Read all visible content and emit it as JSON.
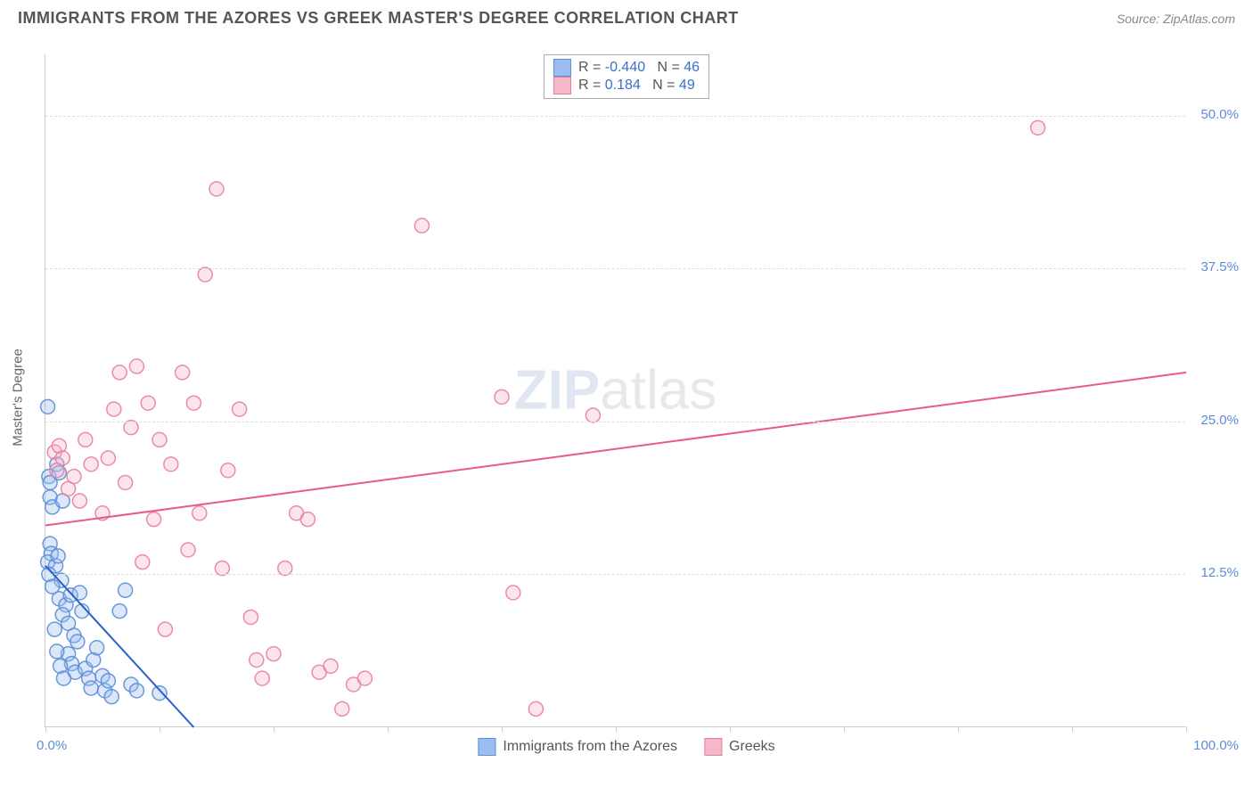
{
  "title": "IMMIGRANTS FROM THE AZORES VS GREEK MASTER'S DEGREE CORRELATION CHART",
  "source": "Source: ZipAtlas.com",
  "ylabel": "Master's Degree",
  "watermark": {
    "zip": "ZIP",
    "atlas": "atlas"
  },
  "chart": {
    "type": "scatter",
    "xlim": [
      0,
      100
    ],
    "ylim": [
      0,
      55
    ],
    "x_ticks": [
      0,
      10,
      20,
      30,
      40,
      50,
      60,
      70,
      80,
      90,
      100
    ],
    "x_tick_labels": {
      "0": "0.0%",
      "100": "100.0%"
    },
    "y_gridlines": [
      12.5,
      25.0,
      37.5,
      50.0
    ],
    "y_tick_labels": [
      "12.5%",
      "25.0%",
      "37.5%",
      "50.0%"
    ],
    "grid_color": "#dddddd",
    "axis_color": "#cccccc",
    "tick_label_color": "#5b8dd6",
    "marker_radius": 8,
    "marker_fill_opacity": 0.35,
    "marker_stroke_opacity": 0.9,
    "line_width": 2,
    "series": [
      {
        "name": "Immigrants from the Azores",
        "color_fill": "#9cbdf0",
        "color_stroke": "#5b8dd6",
        "R": "-0.440",
        "N": "46",
        "trend": {
          "x1": 0,
          "y1": 13.2,
          "x2": 13,
          "y2": 0
        },
        "trend_color": "#2a5fc9",
        "points": [
          [
            0.2,
            26.2
          ],
          [
            0.3,
            20.5
          ],
          [
            0.4,
            20.0
          ],
          [
            0.4,
            18.8
          ],
          [
            0.6,
            18.0
          ],
          [
            0.4,
            15.0
          ],
          [
            0.5,
            14.2
          ],
          [
            0.2,
            13.5
          ],
          [
            0.9,
            13.2
          ],
          [
            0.3,
            12.5
          ],
          [
            1.0,
            21.5
          ],
          [
            1.2,
            20.8
          ],
          [
            1.5,
            18.5
          ],
          [
            1.1,
            14.0
          ],
          [
            1.4,
            12.0
          ],
          [
            1.2,
            10.5
          ],
          [
            1.8,
            10.0
          ],
          [
            1.5,
            9.2
          ],
          [
            2.0,
            8.5
          ],
          [
            2.2,
            10.8
          ],
          [
            2.5,
            7.5
          ],
          [
            2.8,
            7.0
          ],
          [
            2.0,
            6.0
          ],
          [
            2.3,
            5.2
          ],
          [
            2.6,
            4.5
          ],
          [
            3.0,
            11.0
          ],
          [
            3.2,
            9.5
          ],
          [
            3.5,
            4.8
          ],
          [
            3.8,
            4.0
          ],
          [
            4.0,
            3.2
          ],
          [
            4.2,
            5.5
          ],
          [
            4.5,
            6.5
          ],
          [
            5.0,
            4.2
          ],
          [
            5.2,
            3.0
          ],
          [
            5.5,
            3.8
          ],
          [
            5.8,
            2.5
          ],
          [
            6.5,
            9.5
          ],
          [
            7.0,
            11.2
          ],
          [
            7.5,
            3.5
          ],
          [
            8.0,
            3.0
          ],
          [
            10.0,
            2.8
          ],
          [
            0.8,
            8.0
          ],
          [
            1.0,
            6.2
          ],
          [
            1.3,
            5.0
          ],
          [
            1.6,
            4.0
          ],
          [
            0.6,
            11.5
          ]
        ]
      },
      {
        "name": "Greeks",
        "color_fill": "#f5b8c8",
        "color_stroke": "#e87fa0",
        "R": "0.184",
        "N": "49",
        "trend": {
          "x1": 0,
          "y1": 16.5,
          "x2": 100,
          "y2": 29.0
        },
        "trend_color": "#e85a8a",
        "points": [
          [
            0.8,
            22.5
          ],
          [
            1.0,
            21.0
          ],
          [
            1.2,
            23.0
          ],
          [
            1.5,
            22.0
          ],
          [
            2.0,
            19.5
          ],
          [
            2.5,
            20.5
          ],
          [
            3.0,
            18.5
          ],
          [
            3.5,
            23.5
          ],
          [
            4.0,
            21.5
          ],
          [
            5.0,
            17.5
          ],
          [
            5.5,
            22.0
          ],
          [
            6.0,
            26.0
          ],
          [
            6.5,
            29.0
          ],
          [
            7.0,
            20.0
          ],
          [
            7.5,
            24.5
          ],
          [
            8.0,
            29.5
          ],
          [
            8.5,
            13.5
          ],
          [
            9.0,
            26.5
          ],
          [
            9.5,
            17.0
          ],
          [
            10.0,
            23.5
          ],
          [
            10.5,
            8.0
          ],
          [
            11.0,
            21.5
          ],
          [
            12.0,
            29.0
          ],
          [
            12.5,
            14.5
          ],
          [
            13.0,
            26.5
          ],
          [
            13.5,
            17.5
          ],
          [
            14.0,
            37.0
          ],
          [
            15.0,
            44.0
          ],
          [
            15.5,
            13.0
          ],
          [
            16.0,
            21.0
          ],
          [
            17.0,
            26.0
          ],
          [
            18.0,
            9.0
          ],
          [
            18.5,
            5.5
          ],
          [
            19.0,
            4.0
          ],
          [
            20.0,
            6.0
          ],
          [
            21.0,
            13.0
          ],
          [
            22.0,
            17.5
          ],
          [
            23.0,
            17.0
          ],
          [
            24.0,
            4.5
          ],
          [
            25.0,
            5.0
          ],
          [
            26.0,
            1.5
          ],
          [
            27.0,
            3.5
          ],
          [
            28.0,
            4.0
          ],
          [
            33.0,
            41.0
          ],
          [
            40.0,
            27.0
          ],
          [
            41.0,
            11.0
          ],
          [
            43.0,
            1.5
          ],
          [
            48.0,
            25.5
          ],
          [
            87.0,
            49.0
          ]
        ]
      }
    ]
  },
  "legend_top": {
    "rows": [
      {
        "swatch_fill": "#9cbdf0",
        "swatch_stroke": "#5b8dd6",
        "R_label": "R =",
        "R_val": "-0.440",
        "N_label": "N =",
        "N_val": "46"
      },
      {
        "swatch_fill": "#f5b8c8",
        "swatch_stroke": "#e87fa0",
        "R_label": "R =",
        "R_val": "0.184",
        "N_label": "N =",
        "N_val": "49"
      }
    ]
  },
  "legend_bottom": {
    "items": [
      {
        "swatch_fill": "#9cbdf0",
        "swatch_stroke": "#5b8dd6",
        "label": "Immigrants from the Azores"
      },
      {
        "swatch_fill": "#f5b8c8",
        "swatch_stroke": "#e87fa0",
        "label": "Greeks"
      }
    ]
  }
}
